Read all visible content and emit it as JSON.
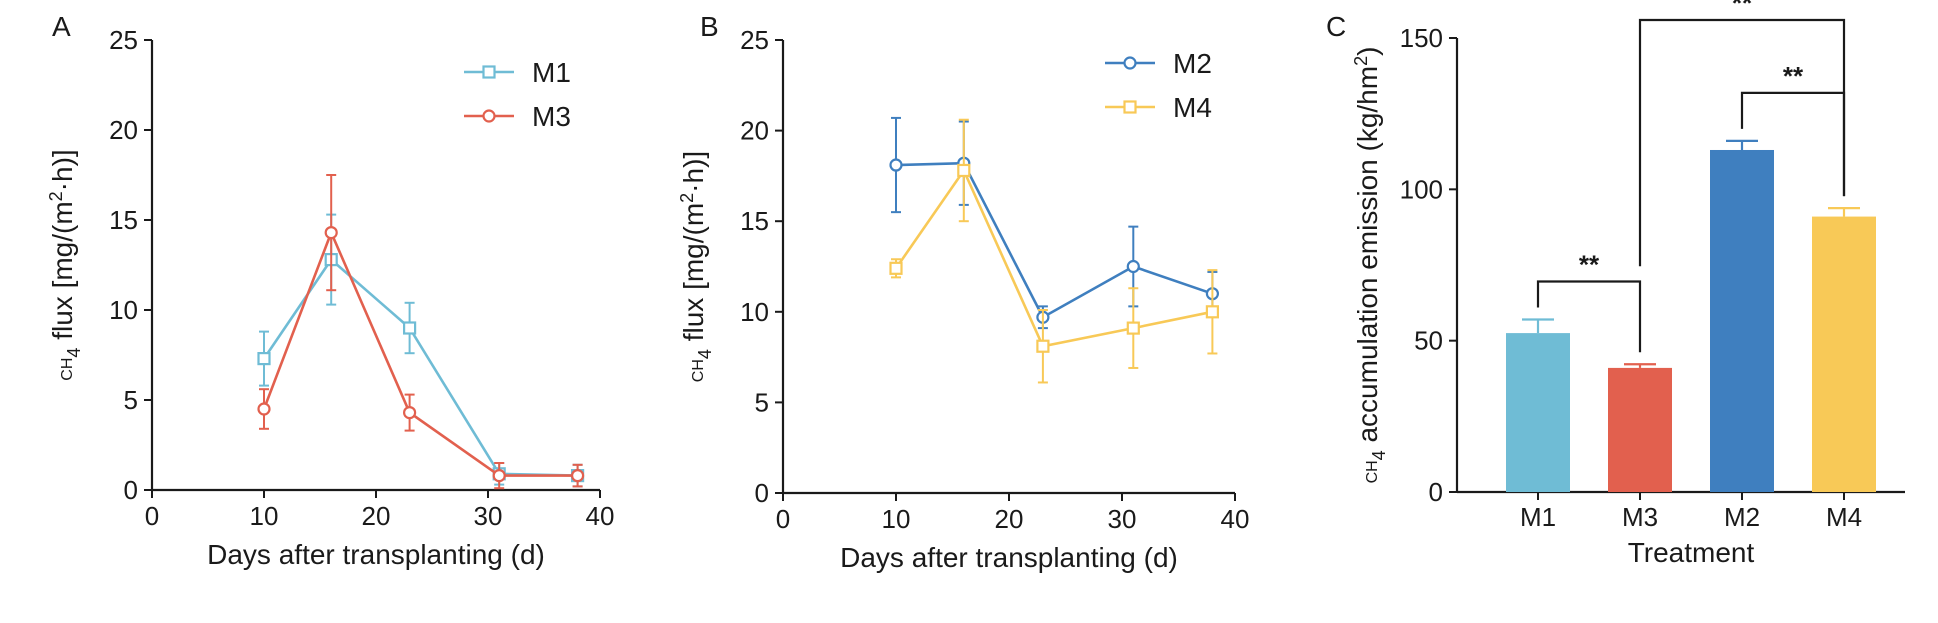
{
  "colors": {
    "M1": "#6fbcd5",
    "M3": "#e2604e",
    "M2": "#3f7fbf",
    "M4": "#f8c957",
    "axis": "#1a1a1a"
  },
  "chart_data": [
    {
      "panel": "A",
      "type": "line",
      "xlabel": "Days after transplanting (d)",
      "ylabel": "CH4 flux [mg/(m2·h)]",
      "xlim": [
        0,
        40
      ],
      "ylim": [
        0,
        25
      ],
      "xticks": [
        "0",
        "10",
        "20",
        "30",
        "40"
      ],
      "yticks": [
        "0",
        "5",
        "10",
        "15",
        "20",
        "25"
      ],
      "legend_position": "top-right",
      "series": [
        {
          "name": "M1",
          "marker": "square",
          "x": [
            10,
            16,
            23,
            31,
            38
          ],
          "y": [
            7.3,
            12.8,
            9.0,
            0.9,
            0.8
          ],
          "err": [
            1.5,
            2.5,
            1.4,
            0.6,
            0.6
          ]
        },
        {
          "name": "M3",
          "marker": "circle",
          "x": [
            10,
            16,
            23,
            31,
            38
          ],
          "y": [
            4.5,
            14.3,
            4.3,
            0.8,
            0.8
          ],
          "err": [
            1.1,
            3.2,
            1.0,
            0.7,
            0.6
          ]
        }
      ]
    },
    {
      "panel": "B",
      "type": "line",
      "xlabel": "Days after transplanting (d)",
      "ylabel": "CH4 flux [mg/(m2·h)]",
      "xlim": [
        0,
        40
      ],
      "ylim": [
        0,
        25
      ],
      "xticks": [
        "0",
        "10",
        "20",
        "30",
        "40"
      ],
      "yticks": [
        "0",
        "5",
        "10",
        "15",
        "20",
        "25"
      ],
      "legend_position": "top-right",
      "series": [
        {
          "name": "M2",
          "marker": "circle",
          "x": [
            10,
            16,
            23,
            31,
            38
          ],
          "y": [
            18.1,
            18.2,
            9.7,
            12.5,
            11.0
          ],
          "err": [
            2.6,
            2.3,
            0.6,
            2.2,
            1.2
          ]
        },
        {
          "name": "M4",
          "marker": "square",
          "x": [
            10,
            16,
            23,
            31,
            38
          ],
          "y": [
            12.4,
            17.8,
            8.1,
            9.1,
            10.0
          ],
          "err": [
            0.5,
            2.8,
            2.0,
            2.2,
            2.3
          ]
        }
      ]
    },
    {
      "panel": "C",
      "type": "bar",
      "xlabel": "Treatment",
      "ylabel": "CH4 accumulation emission (kg/hm2)",
      "categories": [
        "M1",
        "M3",
        "M2",
        "M4"
      ],
      "values": [
        52.5,
        41.0,
        113.0,
        91.0
      ],
      "err": [
        4.5,
        1.2,
        3.0,
        2.8
      ],
      "ylim": [
        0,
        150
      ],
      "yticks": [
        "0",
        "50",
        "100",
        "150"
      ],
      "significance": [
        {
          "from": "M1",
          "to": "M3",
          "label": "**"
        },
        {
          "from": "M2",
          "to": "M4",
          "label": "**"
        },
        {
          "from": "M3",
          "to": "M4",
          "label": "**"
        }
      ]
    }
  ],
  "text": {
    "panel_a": "A",
    "panel_b": "B",
    "panel_c": "C",
    "xlabel_line": "Days after transplanting (d)",
    "xlabel_bar": "Treatment",
    "flux_ylabel_pre": "CH",
    "flux_ylabel_sub": "4",
    "flux_ylabel_mid": " flux [mg/(m",
    "flux_ylabel_sup": "2",
    "flux_ylabel_post": "·h)]",
    "acc_ylabel_pre": "CH",
    "acc_ylabel_sub": "4",
    "acc_ylabel_mid": " accumulation emission (kg/hm",
    "acc_ylabel_sup": "2",
    "acc_ylabel_post": ")"
  }
}
